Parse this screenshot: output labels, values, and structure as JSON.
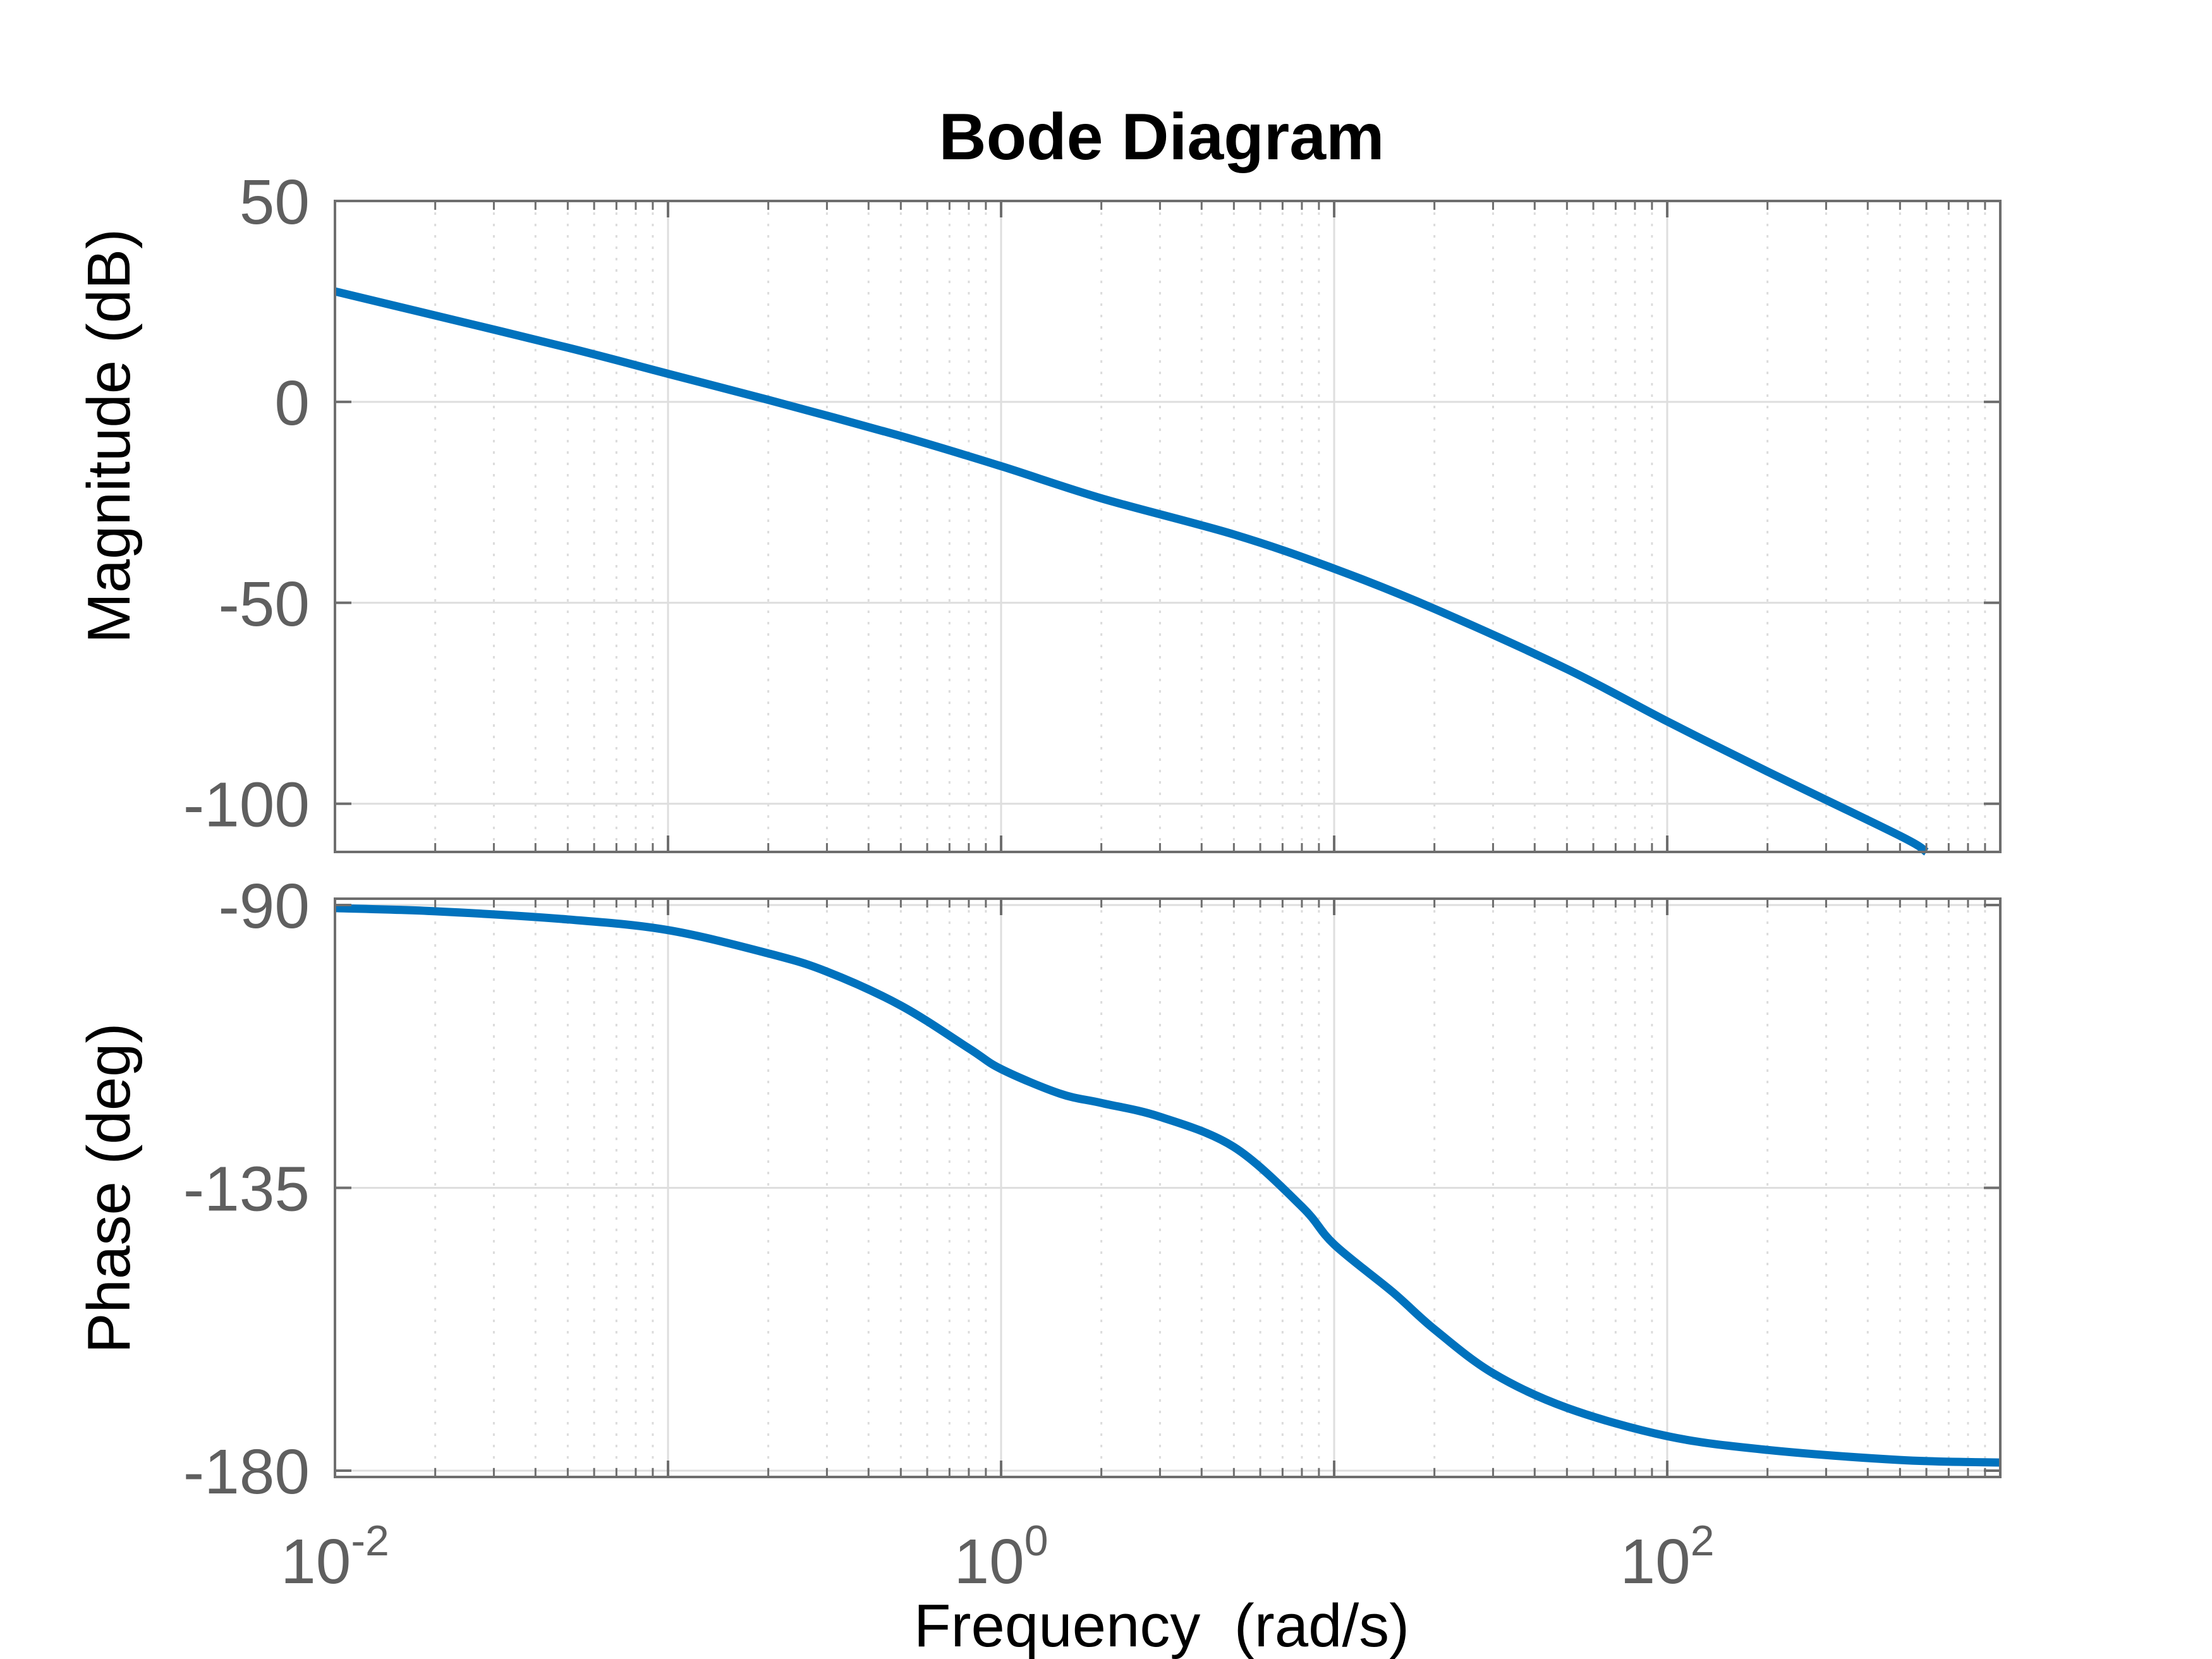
{
  "chart_data": {
    "type": "line",
    "title": "Bode Diagram",
    "xlabel": "Frequency  (rad/s)",
    "xscale": "log",
    "xlim": [
      0.01,
      1000
    ],
    "xticks": [
      0.01,
      1,
      100
    ],
    "xtick_labels": [
      {
        "base": "10",
        "exp": "-2"
      },
      {
        "base": "10",
        "exp": "0"
      },
      {
        "base": "10",
        "exp": "2"
      }
    ],
    "grid": true,
    "line_color": "#0072BD",
    "subplots": [
      {
        "name": "magnitude",
        "ylabel": "Magnitude (dB)",
        "ylim": [
          -112,
          50
        ],
        "yticks": [
          50,
          0,
          -50,
          -100
        ],
        "ytick_labels": [
          "50",
          "0",
          "-50",
          "-100"
        ],
        "series": [
          {
            "x": [
              0.01,
              0.02,
              0.05,
              0.1,
              0.2,
              0.5,
              1,
              2,
              5,
              10,
              20,
              50,
              100,
              200,
              500,
              600
            ],
            "y": [
              27.5,
              21.5,
              13.5,
              7.0,
              0.5,
              -8.5,
              -16.0,
              -24.0,
              -33.0,
              -41.5,
              -51.5,
              -66.5,
              -79.5,
              -92.0,
              -108.0,
              -112.0
            ]
          }
        ]
      },
      {
        "name": "phase",
        "ylabel": "Phase (deg)",
        "ylim": [
          -181,
          -89
        ],
        "yticks": [
          -90,
          -135,
          -180
        ],
        "ytick_labels": [
          "-90",
          "-135",
          "-180"
        ],
        "series": [
          {
            "x": [
              0.01,
              0.02,
              0.05,
              0.1,
              0.2,
              0.3,
              0.5,
              0.8,
              1,
              1.5,
              2,
              3,
              5,
              8,
              10,
              15,
              20,
              30,
              50,
              100,
              200,
              500,
              1000
            ],
            "y": [
              -90.5,
              -91.0,
              -92.3,
              -94.0,
              -97.7,
              -100.6,
              -106.0,
              -112.8,
              -116.1,
              -120.0,
              -121.5,
              -123.7,
              -128.5,
              -138.0,
              -144.0,
              -151.6,
              -157.5,
              -164.5,
              -170.0,
              -174.5,
              -176.7,
              -178.3,
              -178.7
            ]
          }
        ]
      }
    ]
  }
}
